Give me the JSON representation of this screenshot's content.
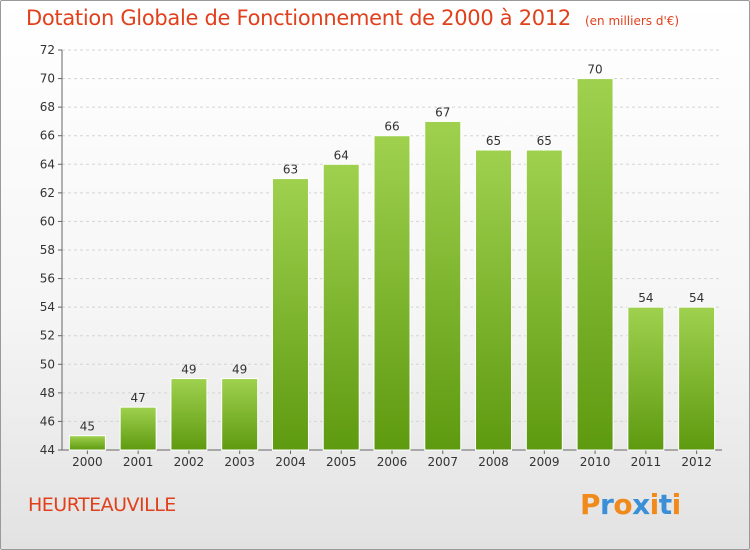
{
  "header": {
    "title": "Dotation Globale de Fonctionnement de 2000 à 2012",
    "unit": "(en milliers d'€)"
  },
  "footer": {
    "place": "HEURTEAUVILLE",
    "logo": "Proxiti"
  },
  "colors": {
    "title": "#e0401c",
    "bar_top": "#9fd14f",
    "bar_bottom": "#5e9a10",
    "logo_letters": [
      "#f08a1c",
      "#3a8fd6",
      "#f08a1c",
      "#3a8fd6",
      "#f08a1c",
      "#3a8fd6",
      "#f08a1c"
    ]
  },
  "chart_data": {
    "type": "bar",
    "title": "Dotation Globale de Fonctionnement de 2000 à 2012",
    "subtitle": "(en milliers d'€)",
    "categories": [
      "2000",
      "2001",
      "2002",
      "2003",
      "2004",
      "2005",
      "2006",
      "2007",
      "2008",
      "2009",
      "2010",
      "2011",
      "2012"
    ],
    "values": [
      45,
      47,
      49,
      49,
      63,
      64,
      66,
      67,
      65,
      65,
      70,
      54,
      54
    ],
    "ylim": [
      44,
      72
    ],
    "yticks": [
      44,
      46,
      48,
      50,
      52,
      54,
      56,
      58,
      60,
      62,
      64,
      66,
      68,
      70,
      72
    ],
    "grid": true,
    "data_labels": true
  }
}
